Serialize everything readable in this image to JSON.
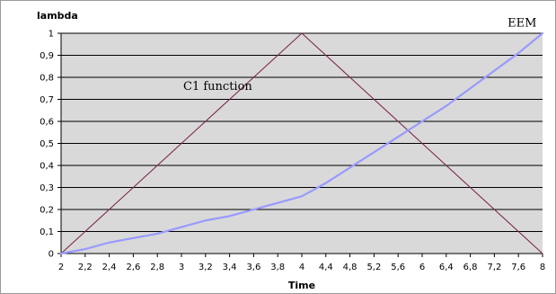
{
  "chart_data": {
    "type": "line",
    "ylabel": "lambda",
    "xlabel": "Time",
    "xlim": [
      2,
      8
    ],
    "ylim": [
      0,
      1
    ],
    "x_ticks": [
      "2",
      "2,2",
      "2,4",
      "2,6",
      "2,8",
      "3",
      "3,2",
      "3,4",
      "3,6",
      "3,8",
      "4",
      "4,4",
      "4,8",
      "5,2",
      "5,6",
      "6",
      "6,4",
      "6,8",
      "7,2",
      "7,6",
      "8"
    ],
    "y_ticks": [
      "0",
      "0,1",
      "0,2",
      "0,3",
      "0,4",
      "0,5",
      "0,6",
      "0,7",
      "0,8",
      "0,9",
      "1"
    ],
    "grid": true,
    "background_color": "#d9d9d9",
    "series": [
      {
        "name": "C1 function",
        "color": "#7b2550",
        "values": [
          0,
          0.1,
          0.2,
          0.3,
          0.4,
          0.5,
          0.6,
          0.7,
          0.8,
          0.9,
          1,
          0.9,
          0.8,
          0.7,
          0.6,
          0.5,
          0.4,
          0.3,
          0.2,
          0.1,
          0
        ]
      },
      {
        "name": "EEM",
        "color": "#9999ff",
        "values": [
          0,
          0.02,
          0.05,
          0.07,
          0.09,
          0.12,
          0.15,
          0.17,
          0.2,
          0.23,
          0.26,
          0.32,
          0.39,
          0.46,
          0.53,
          0.6,
          0.67,
          0.75,
          0.83,
          0.91,
          1
        ]
      }
    ],
    "annotations": [
      {
        "text": "C1 function",
        "x_index": 5,
        "y": 0.76
      },
      {
        "text": "EEM",
        "x_index": 18.55,
        "y": 1.03
      }
    ]
  }
}
